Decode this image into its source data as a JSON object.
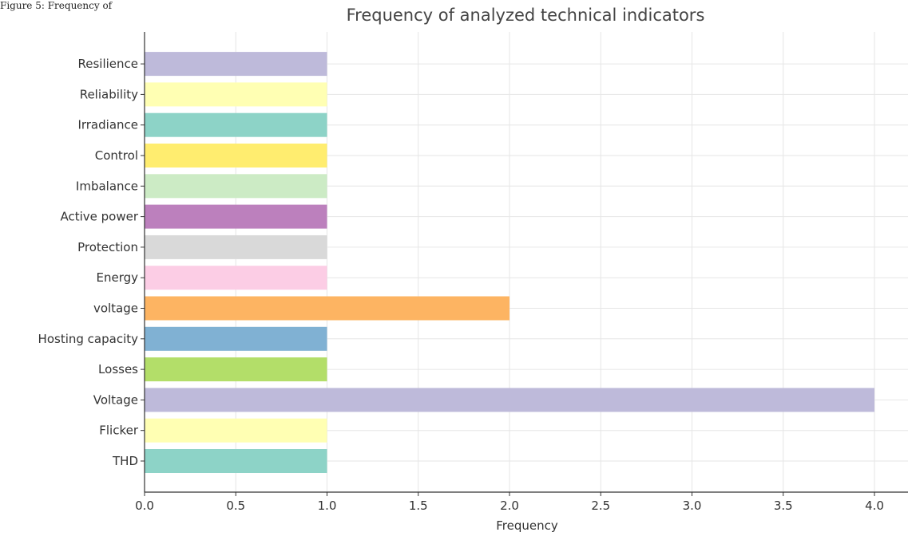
{
  "caption": "Figure 5: Frequency of",
  "chart_data": {
    "type": "bar",
    "orientation": "horizontal",
    "title": "Frequency of analyzed technical indicators",
    "xlabel": "Frequency",
    "ylabel": "",
    "xlim": [
      0,
      4.2
    ],
    "xticks": [
      "0.0",
      "0.5",
      "1.0",
      "1.5",
      "2.0",
      "2.5",
      "3.0",
      "3.5",
      "4.0"
    ],
    "grid": true,
    "categories": [
      "THD",
      "Flicker",
      "Voltage",
      "Losses",
      "Hosting capacity",
      "voltage",
      "Energy",
      "Protection",
      "Active power",
      "Imbalance",
      "Control",
      "Irradiance",
      "Reliability",
      "Resilience"
    ],
    "values": [
      1,
      1,
      4,
      1,
      1,
      2,
      1,
      1,
      1,
      1,
      1,
      1,
      1,
      1
    ],
    "colors": [
      "#8dd3c7",
      "#ffffb3",
      "#bebada",
      "#b3de69",
      "#80b1d3",
      "#fdb462",
      "#fccde5",
      "#d9d9d9",
      "#bc80bd",
      "#ccebc5",
      "#ffed6f",
      "#8dd3c7",
      "#ffffb3",
      "#bebada"
    ]
  }
}
